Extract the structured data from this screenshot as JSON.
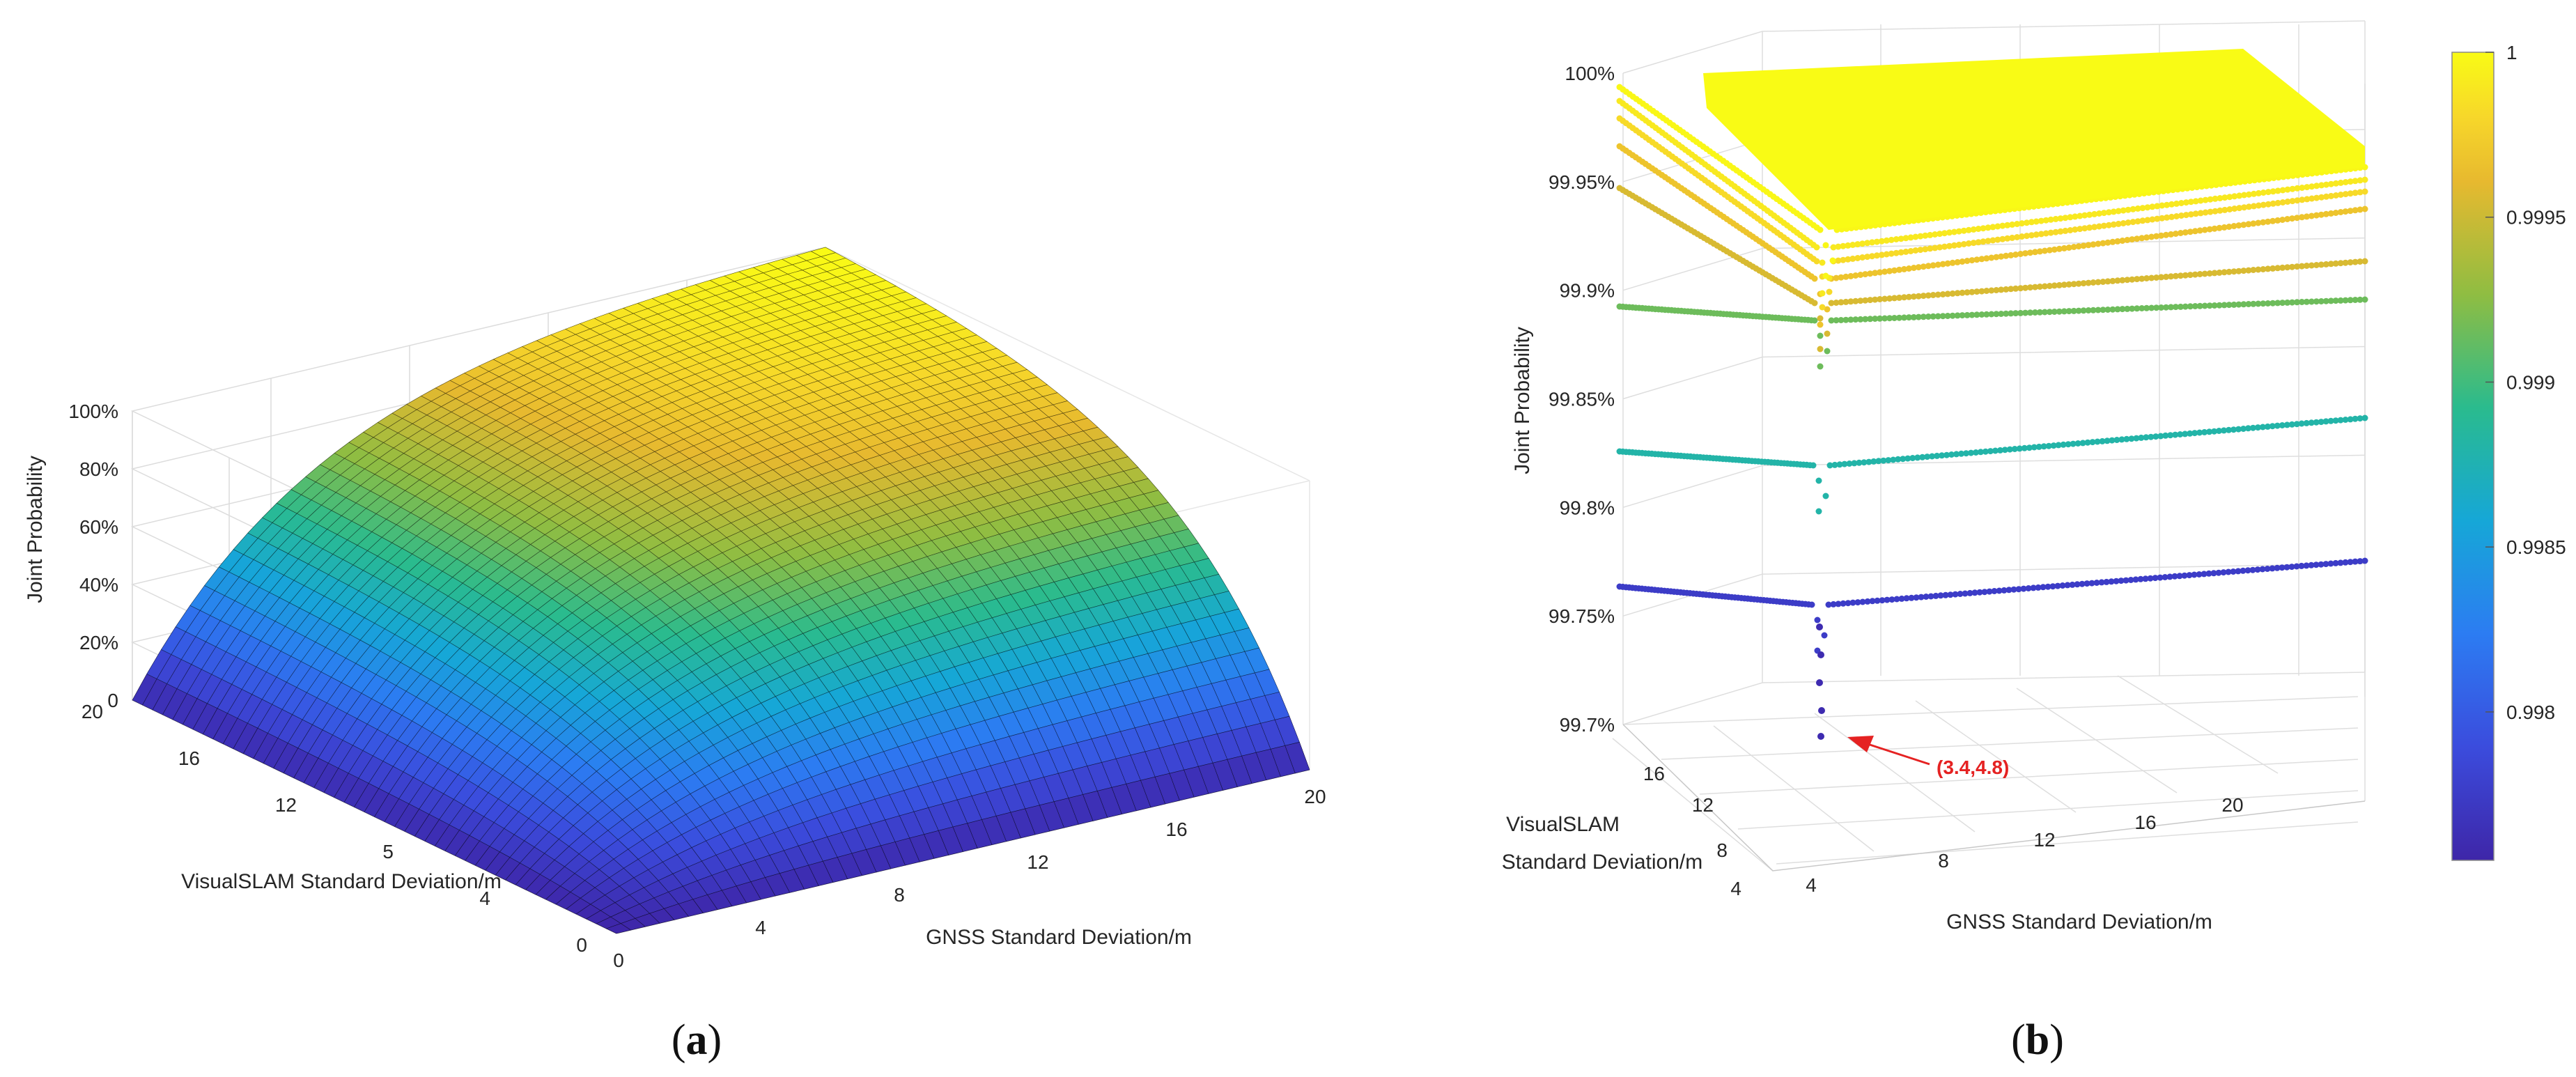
{
  "chart_data": [
    {
      "type": "surface",
      "panel": "(a)",
      "panel_label": {
        "open": "(",
        "letter": "a",
        "close": ")"
      },
      "zlabel": "Joint Probability",
      "xlabel": "GNSS Standard Deviation/m",
      "ylabel": "VisualSLAM Standard Deviation/m",
      "z_ticks": [
        "0",
        "20%",
        "40%",
        "60%",
        "80%",
        "100%"
      ],
      "x_ticks": [
        "0",
        "4",
        "8",
        "12",
        "16",
        "20"
      ],
      "y_ticks": [
        "0",
        "4",
        "5",
        "12",
        "16",
        "20"
      ],
      "xlim": [
        0,
        20
      ],
      "ylim": [
        0,
        20
      ],
      "zlim": [
        0,
        1
      ],
      "colormap": "parula",
      "colormap_stops": [
        "#3e26a8",
        "#2c63f7",
        "#12a4d6",
        "#2ab88f",
        "#8fbd42",
        "#d1b32a",
        "#f9cf2a",
        "#f9fb15"
      ],
      "description_values": {
        "z_at_origin": 0.0,
        "z_max": 1.0
      }
    },
    {
      "type": "scatter3d",
      "panel": "(b)",
      "panel_label": {
        "open": "(",
        "letter": "b",
        "close": ")"
      },
      "zlabel": "Joint Probability",
      "xlabel": "GNSS  Standard Deviation/m",
      "ylabel_line1": "VisualSLAM",
      "ylabel_line2": "Standard Deviation/m",
      "z_ticks": [
        "99.7%",
        "99.75%",
        "99.8%",
        "99.85%",
        "99.9%",
        "99.95%",
        "100%"
      ],
      "x_ticks": [
        "4",
        "8",
        "12",
        "16",
        "20"
      ],
      "y_ticks": [
        "4",
        "8",
        "12",
        "16"
      ],
      "zlim": [
        0.997,
        1.0
      ],
      "annotation": {
        "text": "(3.4,4.8)",
        "x": 3.4,
        "y": 4.8,
        "color": "#e52222"
      },
      "levels": [
        0.99775,
        0.9985,
        0.99885,
        0.99915,
        0.99935,
        0.9995,
        0.9996,
        0.9997
      ],
      "colorbar": {
        "ticks": [
          "1",
          "0.9995",
          "0.999",
          "0.9985",
          "0.998"
        ],
        "tick_values": [
          1.0,
          0.9995,
          0.999,
          0.9985,
          0.998
        ],
        "range": [
          0.99755,
          1.0
        ]
      }
    }
  ]
}
